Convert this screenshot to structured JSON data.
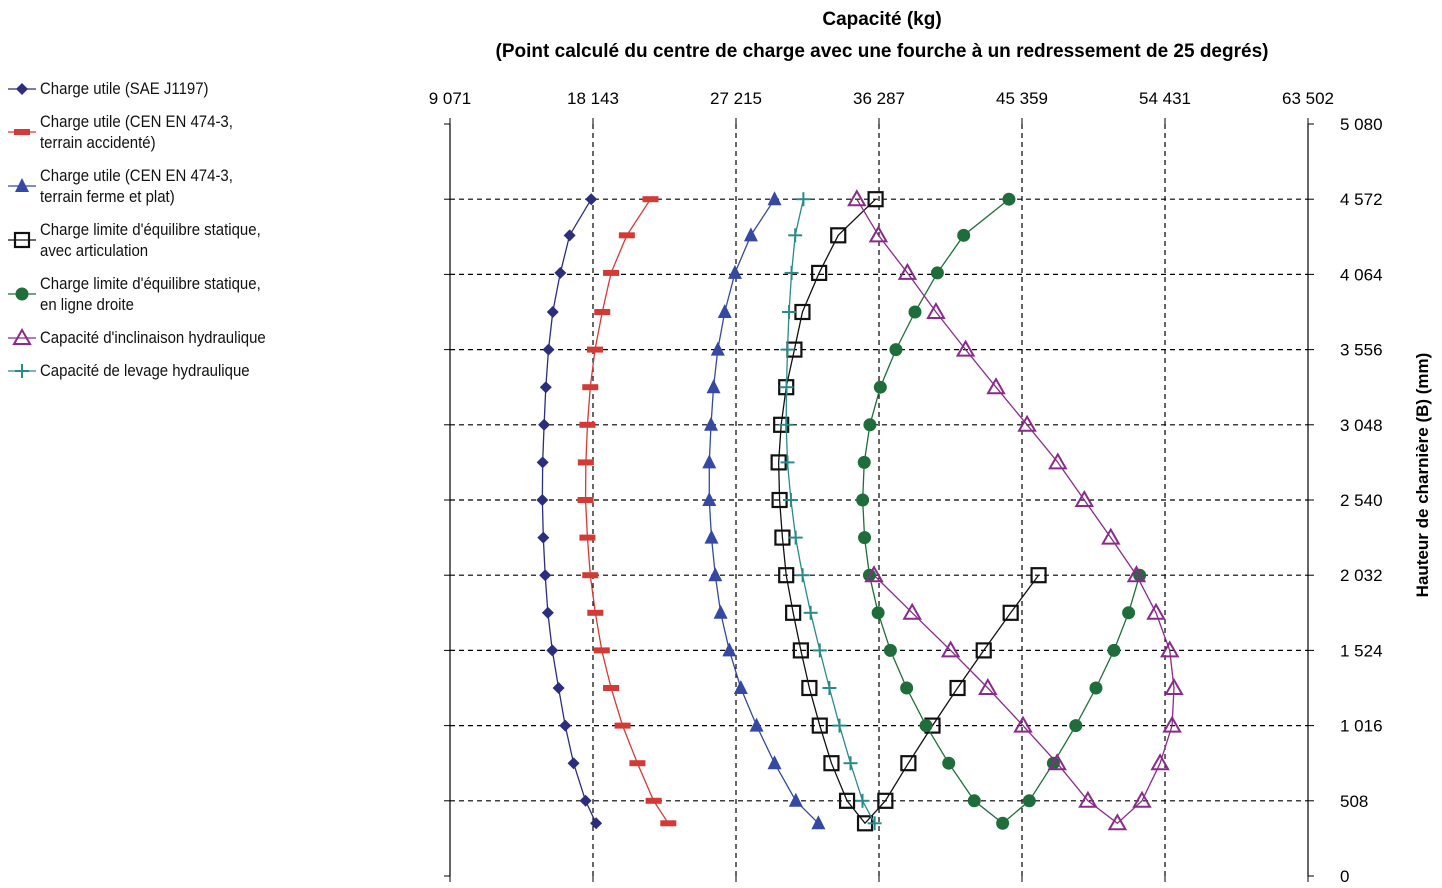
{
  "chart_data": {
    "type": "scatter",
    "title": "Capacité (kg)",
    "subtitle": "(Point calculé du centre de charge avec une fourche à un redressement de 25 degrés)",
    "xlabel": "Capacité (kg)",
    "ylabel": "Hauteur de charnière (B) (mm)",
    "xlim": [
      9071,
      63502
    ],
    "ylim": [
      0,
      5080
    ],
    "x_ticks": [
      9071,
      18143,
      27215,
      36287,
      45359,
      54431,
      63502
    ],
    "x_tick_labels": [
      "9 071",
      "18 143",
      "27 215",
      "36 287",
      "45 359",
      "54 431",
      "63 502"
    ],
    "y_ticks": [
      0,
      508,
      1016,
      1524,
      2032,
      2540,
      3048,
      3556,
      4064,
      4572,
      5080
    ],
    "y_tick_labels": [
      "0",
      "508",
      "1 016",
      "1 524",
      "2 032",
      "2 540",
      "3 048",
      "3 556",
      "4 064",
      "4 572",
      "5 080"
    ],
    "grid": true,
    "legend_position": "left",
    "series": [
      {
        "name": "Charge utile (SAE J1197)",
        "color": "#2b2d7e",
        "marker": "diamond-filled",
        "points": [
          [
            18030,
            4572
          ],
          [
            16660,
            4328
          ],
          [
            16070,
            4074
          ],
          [
            15590,
            3810
          ],
          [
            15320,
            3556
          ],
          [
            15150,
            3302
          ],
          [
            15040,
            3048
          ],
          [
            14950,
            2794
          ],
          [
            14930,
            2540
          ],
          [
            14990,
            2286
          ],
          [
            15110,
            2032
          ],
          [
            15280,
            1778
          ],
          [
            15560,
            1524
          ],
          [
            15960,
            1270
          ],
          [
            16380,
            1016
          ],
          [
            16910,
            762
          ],
          [
            17670,
            508
          ],
          [
            18340,
            356
          ]
        ]
      },
      {
        "name": "Charge utile (CEN EN 474-3,\nterrain accidenté)",
        "color": "#d33a35",
        "marker": "dash",
        "points": [
          [
            21790,
            4572
          ],
          [
            20290,
            4328
          ],
          [
            19290,
            4074
          ],
          [
            18730,
            3810
          ],
          [
            18270,
            3556
          ],
          [
            17970,
            3302
          ],
          [
            17790,
            3048
          ],
          [
            17690,
            2794
          ],
          [
            17670,
            2540
          ],
          [
            17790,
            2286
          ],
          [
            17970,
            2032
          ],
          [
            18290,
            1778
          ],
          [
            18700,
            1524
          ],
          [
            19290,
            1270
          ],
          [
            20020,
            1016
          ],
          [
            20960,
            762
          ],
          [
            21990,
            508
          ],
          [
            22920,
            356
          ]
        ]
      },
      {
        "name": "Charge utile (CEN EN 474-3,\nterrain ferme et plat)",
        "color": "#3548a3",
        "marker": "triangle-filled",
        "points": [
          [
            29660,
            4572
          ],
          [
            28160,
            4328
          ],
          [
            27150,
            4074
          ],
          [
            26500,
            3810
          ],
          [
            26060,
            3556
          ],
          [
            25790,
            3302
          ],
          [
            25630,
            3048
          ],
          [
            25520,
            2794
          ],
          [
            25520,
            2540
          ],
          [
            25660,
            2286
          ],
          [
            25900,
            2032
          ],
          [
            26240,
            1778
          ],
          [
            26790,
            1524
          ],
          [
            27520,
            1270
          ],
          [
            28520,
            1016
          ],
          [
            29660,
            762
          ],
          [
            31010,
            508
          ],
          [
            32440,
            356
          ]
        ]
      },
      {
        "name": "Charge limite d'équilibre statique,\navec articulation",
        "color": "#111111",
        "marker": "square-open",
        "points": [
          [
            36070,
            4572
          ],
          [
            33700,
            4328
          ],
          [
            32490,
            4074
          ],
          [
            31430,
            3810
          ],
          [
            30920,
            3556
          ],
          [
            30400,
            3302
          ],
          [
            30080,
            3048
          ],
          [
            29920,
            2794
          ],
          [
            29980,
            2540
          ],
          [
            30160,
            2286
          ],
          [
            30400,
            2032
          ],
          [
            30840,
            1778
          ],
          [
            31330,
            1524
          ],
          [
            31870,
            1270
          ],
          [
            32530,
            1016
          ],
          [
            33270,
            762
          ],
          [
            34260,
            508
          ],
          [
            35400,
            356
          ],
          [
            36690,
            508
          ],
          [
            38150,
            762
          ],
          [
            39680,
            1016
          ],
          [
            41270,
            1270
          ],
          [
            42930,
            1524
          ],
          [
            44640,
            1778
          ],
          [
            46410,
            2032
          ]
        ]
      },
      {
        "name": "Charge limite d'équilibre statique,\nen ligne droite",
        "color": "#1f6d3a",
        "marker": "circle-filled",
        "points": [
          [
            44530,
            4572
          ],
          [
            41660,
            4328
          ],
          [
            39990,
            4074
          ],
          [
            38570,
            3810
          ],
          [
            37360,
            3556
          ],
          [
            36370,
            3302
          ],
          [
            35710,
            3048
          ],
          [
            35350,
            2794
          ],
          [
            35250,
            2540
          ],
          [
            35370,
            2286
          ],
          [
            35680,
            2032
          ],
          [
            36230,
            1778
          ],
          [
            37010,
            1524
          ],
          [
            38040,
            1270
          ],
          [
            39270,
            1016
          ],
          [
            40710,
            762
          ],
          [
            42330,
            508
          ],
          [
            44130,
            356
          ],
          [
            45820,
            508
          ],
          [
            47350,
            762
          ],
          [
            48770,
            1016
          ],
          [
            50050,
            1270
          ],
          [
            51190,
            1524
          ],
          [
            52120,
            1778
          ],
          [
            52820,
            2032
          ]
        ]
      },
      {
        "name": "Capacité d'inclinaison hydraulique",
        "color": "#8a2a8a",
        "marker": "triangle-open",
        "points": [
          [
            34880,
            4572
          ],
          [
            36250,
            4328
          ],
          [
            38090,
            4074
          ],
          [
            39900,
            3810
          ],
          [
            41780,
            3556
          ],
          [
            43710,
            3302
          ],
          [
            45680,
            3048
          ],
          [
            47630,
            2794
          ],
          [
            49310,
            2540
          ],
          [
            50990,
            2286
          ],
          [
            52620,
            2032
          ],
          [
            53860,
            1778
          ],
          [
            54730,
            1524
          ],
          [
            55000,
            1270
          ],
          [
            54880,
            1016
          ],
          [
            54120,
            762
          ],
          [
            52970,
            508
          ],
          [
            51410,
            356
          ],
          [
            49540,
            508
          ],
          [
            47590,
            762
          ],
          [
            45420,
            1016
          ],
          [
            43190,
            1270
          ],
          [
            40830,
            1524
          ],
          [
            38390,
            1778
          ],
          [
            35970,
            2032
          ]
        ]
      },
      {
        "name": "Capacité de levage hydraulique",
        "color": "#2a8a8a",
        "marker": "plus",
        "points": [
          [
            31490,
            4572
          ],
          [
            30970,
            4328
          ],
          [
            30740,
            4074
          ],
          [
            30580,
            3810
          ],
          [
            30480,
            3556
          ],
          [
            30420,
            3302
          ],
          [
            30400,
            3048
          ],
          [
            30480,
            2794
          ],
          [
            30700,
            2540
          ],
          [
            31000,
            2286
          ],
          [
            31440,
            2032
          ],
          [
            31950,
            1778
          ],
          [
            32530,
            1524
          ],
          [
            33140,
            1270
          ],
          [
            33780,
            1016
          ],
          [
            34480,
            762
          ],
          [
            35240,
            508
          ],
          [
            36010,
            356
          ]
        ]
      }
    ]
  },
  "legend": {
    "items": [
      "Charge utile (SAE J1197)",
      "Charge utile (CEN EN 474-3,\nterrain accidenté)",
      "Charge utile (CEN EN 474-3,\nterrain ferme et plat)",
      "Charge limite d'équilibre statique,\navec articulation",
      "Charge limite d'équilibre statique,\nen ligne droite",
      "Capacité d'inclinaison hydraulique",
      "Capacité de levage hydraulique"
    ]
  }
}
